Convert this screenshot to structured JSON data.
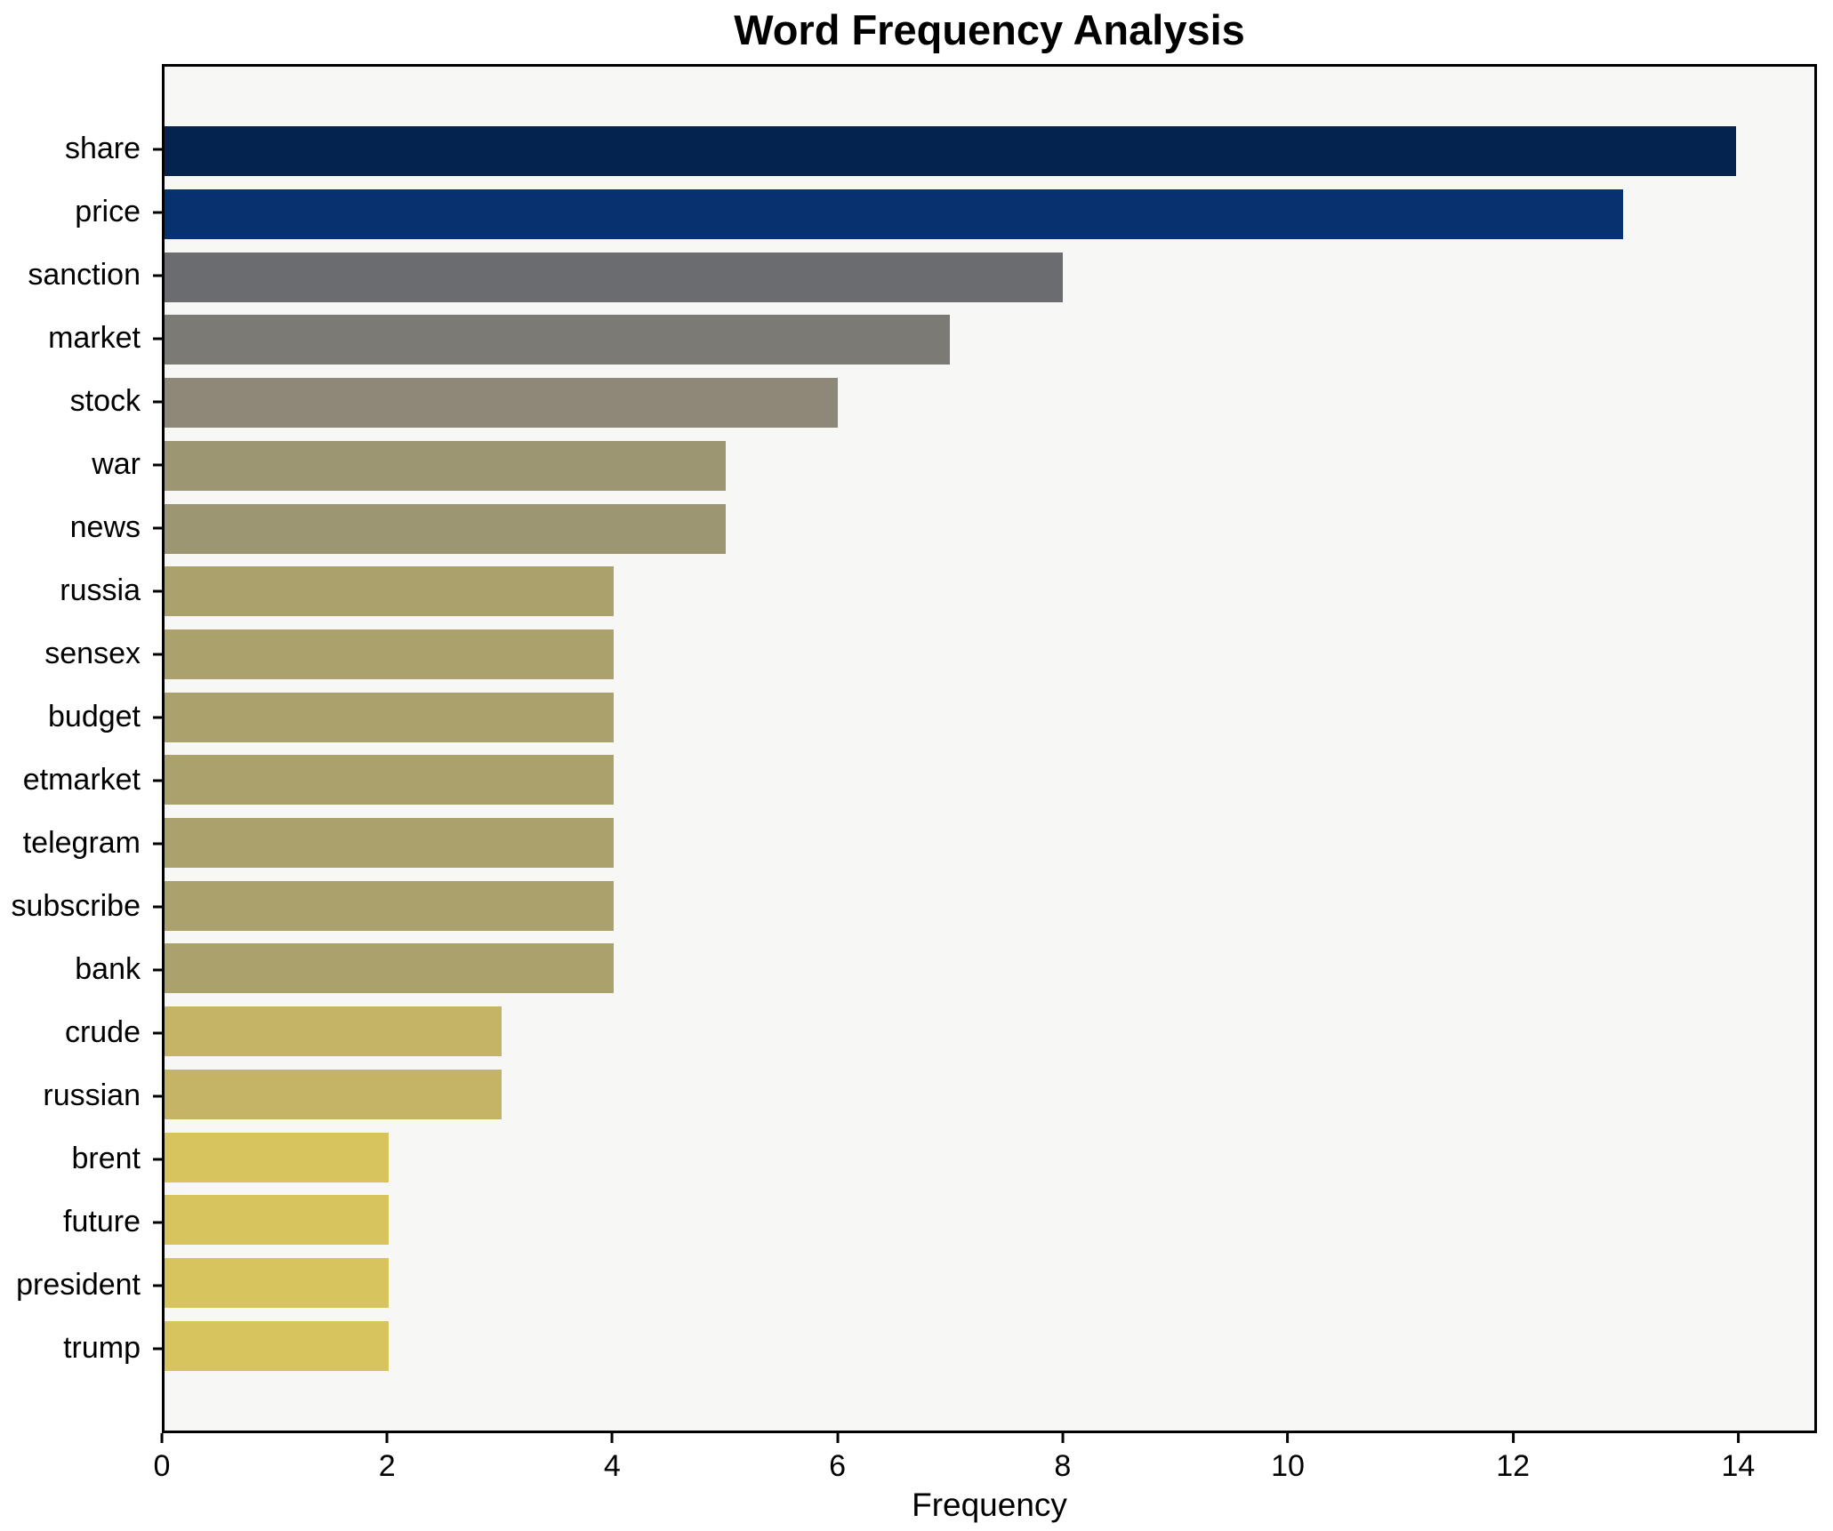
{
  "chart_data": {
    "type": "bar",
    "orientation": "horizontal",
    "title": "Word Frequency Analysis",
    "xlabel": "Frequency",
    "ylabel": "",
    "categories": [
      "share",
      "price",
      "sanction",
      "market",
      "stock",
      "war",
      "news",
      "russia",
      "sensex",
      "budget",
      "etmarket",
      "telegram",
      "subscribe",
      "bank",
      "crude",
      "russian",
      "brent",
      "future",
      "president",
      "trump"
    ],
    "values": [
      14,
      13,
      8,
      7,
      6,
      5,
      5,
      4,
      4,
      4,
      4,
      4,
      4,
      4,
      3,
      3,
      2,
      2,
      2,
      2
    ],
    "bar_colors": [
      "#04234e",
      "#083170",
      "#6b6c70",
      "#7b7a75",
      "#8e8878",
      "#9d9673",
      "#9d9673",
      "#aaa16c",
      "#aaa16c",
      "#aaa16c",
      "#aaa16c",
      "#aaa16c",
      "#aaa16c",
      "#aaa16c",
      "#c6b466",
      "#c6b466",
      "#d7c45e",
      "#d7c45e",
      "#d7c45e",
      "#d7c45e"
    ],
    "xticks": [
      0,
      2,
      4,
      6,
      8,
      10,
      12,
      14
    ],
    "xlim": [
      0,
      14.7
    ],
    "grid": false,
    "legend": false,
    "colormap": "cividis-like (dark navy to gold)",
    "colors": {
      "figure_bg": "#ffffff",
      "plot_bg": "#f7f7f5",
      "spine": "#000000",
      "text": "#000000"
    }
  }
}
